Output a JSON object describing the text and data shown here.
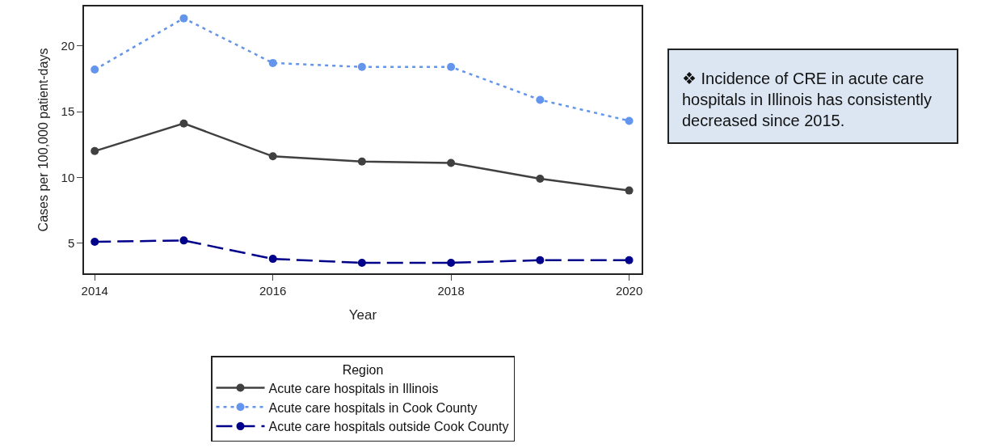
{
  "chart_data": {
    "type": "line",
    "xlabel": "Year",
    "ylabel": "Cases per 100,000 patient-days",
    "legend_title": "Region",
    "x": [
      2014,
      2015,
      2016,
      2017,
      2018,
      2019,
      2020
    ],
    "series": [
      {
        "name": "Acute care hospitals in Illinois",
        "color": "#404040",
        "line_style": "solid",
        "values": [
          12.0,
          14.1,
          11.6,
          11.2,
          11.1,
          9.9,
          9.0
        ]
      },
      {
        "name": "Acute care hospitals in Cook County",
        "color": "#6495ed",
        "line_style": "dotted",
        "values": [
          18.2,
          22.1,
          18.7,
          18.4,
          18.4,
          15.9,
          14.3
        ]
      },
      {
        "name": "Acute care hospitals outside Cook County",
        "color": "#00008b",
        "line_style": "dashed",
        "values": [
          5.1,
          5.2,
          3.8,
          3.5,
          3.5,
          3.7,
          3.7
        ]
      }
    ],
    "xlim": [
      2013.88,
      2020.14
    ],
    "xticks": [
      2014,
      2016,
      2018,
      2020
    ],
    "ylim": [
      2.7,
      23.0
    ],
    "yticks": [
      5,
      10,
      15,
      20
    ],
    "marker": "circle",
    "grid": false,
    "legend": "bottom",
    "annotations": [
      "❖  Incidence of CRE in acute care hospitals in Illinois has consistently decreased since 2015."
    ]
  }
}
